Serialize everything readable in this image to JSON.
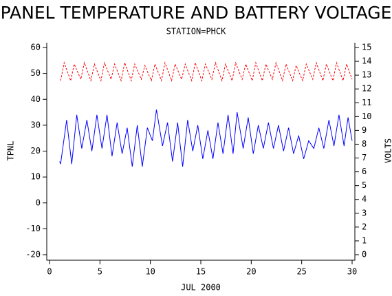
{
  "chart_data": {
    "type": "line",
    "title": "PANEL TEMPERATURE AND BATTERY VOLTAGE",
    "subtitle": "STATION=PHCK",
    "x_label": "JUL 2000",
    "y_label": "TPNL",
    "y2_label": "VOLTS",
    "xlim": [
      0,
      30
    ],
    "xticks": [
      0,
      5,
      10,
      15,
      20,
      25,
      30
    ],
    "ylim": [
      -20,
      60
    ],
    "yticks": [
      -20,
      -10,
      0,
      10,
      20,
      30,
      40,
      50,
      60
    ],
    "y2lim": [
      0,
      15
    ],
    "y2ticks": [
      0,
      1,
      2,
      3,
      4,
      5,
      6,
      7,
      8,
      9,
      10,
      11,
      12,
      13,
      14,
      15
    ],
    "series": [
      {
        "name": "TPNL",
        "color": "#0000ff",
        "x": [
          1.0,
          1.1,
          1.7,
          2.2,
          2.7,
          3.2,
          3.7,
          4.2,
          4.7,
          5.2,
          5.7,
          6.2,
          6.7,
          7.2,
          7.7,
          8.2,
          8.7,
          9.2,
          9.7,
          10.2,
          10.6,
          11.2,
          11.7,
          12.2,
          12.7,
          13.2,
          13.7,
          14.2,
          14.7,
          15.2,
          15.7,
          16.2,
          16.7,
          17.2,
          17.7,
          18.2,
          18.6,
          19.2,
          19.7,
          20.2,
          20.7,
          21.2,
          21.7,
          22.2,
          22.7,
          23.2,
          23.7,
          24.2,
          24.7,
          25.2,
          25.7,
          26.2,
          26.7,
          27.2,
          27.7,
          28.2,
          28.7,
          29.2,
          29.6,
          30.0
        ],
        "values": [
          16,
          15,
          32,
          15,
          34,
          21,
          32,
          20,
          34,
          21,
          34,
          18,
          31,
          19,
          29,
          14,
          30,
          14,
          29,
          24,
          36,
          22,
          31,
          16,
          31,
          14,
          32,
          20,
          30,
          17,
          28,
          17,
          31,
          19,
          34,
          19,
          35,
          21,
          33,
          19,
          30,
          21,
          31,
          21,
          30,
          20,
          29,
          19,
          26,
          17,
          24,
          21,
          29,
          21,
          32,
          22,
          34,
          22,
          33,
          24
        ]
      },
      {
        "name": "VOLTS",
        "color": "#ff0000",
        "axis": "y2",
        "x": [
          1.1,
          1.45,
          2.1,
          2.45,
          3.1,
          3.45,
          4.1,
          4.45,
          5.1,
          5.45,
          6.1,
          6.45,
          7.1,
          7.45,
          8.1,
          8.45,
          9.1,
          9.45,
          10.1,
          10.45,
          11.1,
          11.45,
          12.1,
          12.45,
          13.1,
          13.45,
          14.1,
          14.45,
          15.1,
          15.45,
          16.1,
          16.45,
          17.1,
          17.45,
          18.1,
          18.45,
          19.1,
          19.45,
          20.1,
          20.45,
          21.1,
          21.45,
          22.1,
          22.45,
          23.1,
          23.45,
          24.1,
          24.45,
          25.1,
          25.45,
          26.1,
          26.45,
          27.1,
          27.45,
          28.1,
          28.45,
          29.1,
          29.45,
          30.0
        ],
        "values": [
          12.6,
          13.9,
          12.6,
          13.8,
          12.7,
          13.9,
          12.6,
          13.8,
          12.6,
          13.9,
          12.7,
          13.8,
          12.6,
          13.9,
          12.6,
          13.8,
          12.7,
          13.7,
          12.6,
          13.8,
          12.6,
          13.9,
          12.6,
          13.8,
          12.7,
          13.8,
          12.6,
          13.9,
          12.6,
          13.8,
          12.7,
          13.9,
          12.6,
          13.8,
          12.6,
          13.9,
          12.7,
          13.8,
          12.6,
          13.9,
          12.6,
          13.8,
          12.7,
          13.9,
          12.6,
          13.8,
          12.6,
          13.7,
          12.6,
          13.8,
          12.7,
          13.9,
          12.6,
          13.8,
          12.6,
          13.9,
          12.6,
          13.8,
          12.7
        ]
      }
    ]
  }
}
